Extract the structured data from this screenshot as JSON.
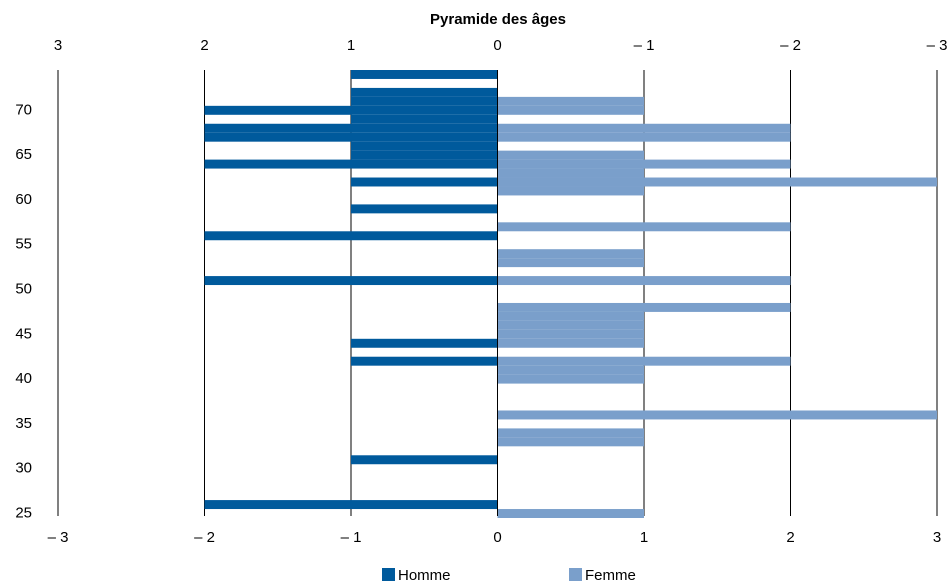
{
  "chart_data": {
    "type": "bar",
    "orientation": "horizontal",
    "title": "Pyramide des âges",
    "y": [
      25,
      26,
      27,
      28,
      29,
      30,
      31,
      32,
      33,
      34,
      35,
      36,
      37,
      38,
      39,
      40,
      41,
      42,
      43,
      44,
      45,
      46,
      47,
      48,
      49,
      50,
      51,
      52,
      53,
      54,
      55,
      56,
      57,
      58,
      59,
      60,
      61,
      62,
      63,
      64,
      65,
      66,
      67,
      68,
      69,
      70,
      71,
      72,
      73,
      74
    ],
    "series": [
      {
        "name": "Homme",
        "color": "#005a9c",
        "values": [
          0,
          -2,
          0,
          0,
          0,
          0,
          -1,
          0,
          0,
          0,
          0,
          0,
          0,
          0,
          0,
          0,
          0,
          -1,
          0,
          -1,
          0,
          0,
          0,
          0,
          0,
          0,
          -2,
          0,
          0,
          0,
          0,
          -2,
          0,
          0,
          -1,
          0,
          0,
          -1,
          0,
          -2,
          -1,
          -1,
          -2,
          -2,
          -1,
          -2,
          -1,
          -1,
          0,
          -1
        ]
      },
      {
        "name": "Femme",
        "color": "#7a9fcb",
        "values": [
          1,
          0,
          0,
          0,
          0,
          0,
          0,
          0,
          1,
          1,
          0,
          3,
          0,
          0,
          0,
          1,
          1,
          2,
          0,
          1,
          1,
          1,
          1,
          2,
          0,
          0,
          2,
          0,
          1,
          1,
          0,
          0,
          2,
          0,
          0,
          0,
          1,
          3,
          1,
          2,
          1,
          0,
          2,
          2,
          0,
          1,
          1,
          0,
          0,
          0
        ]
      }
    ],
    "xlim": [
      -3,
      3
    ],
    "xticks": [
      {
        "value": -3,
        "label": "– 3"
      },
      {
        "value": -2,
        "label": "– 2"
      },
      {
        "value": -1,
        "label": "– 1"
      },
      0,
      1,
      2,
      3
    ],
    "x2ticks": [
      {
        "value": -3,
        "label": "3"
      },
      {
        "value": -2,
        "label": "2"
      },
      {
        "value": -1,
        "label": "1"
      },
      0,
      {
        "value": 1,
        "label": "– 1"
      },
      {
        "value": 2,
        "label": "– 2"
      },
      {
        "value": 3,
        "label": "– 3"
      }
    ],
    "ylim": [
      24.5,
      74.5
    ],
    "yticks": [
      25,
      30,
      35,
      40,
      45,
      50,
      55,
      60,
      65,
      70
    ],
    "grid": true,
    "legend": "bottom"
  }
}
